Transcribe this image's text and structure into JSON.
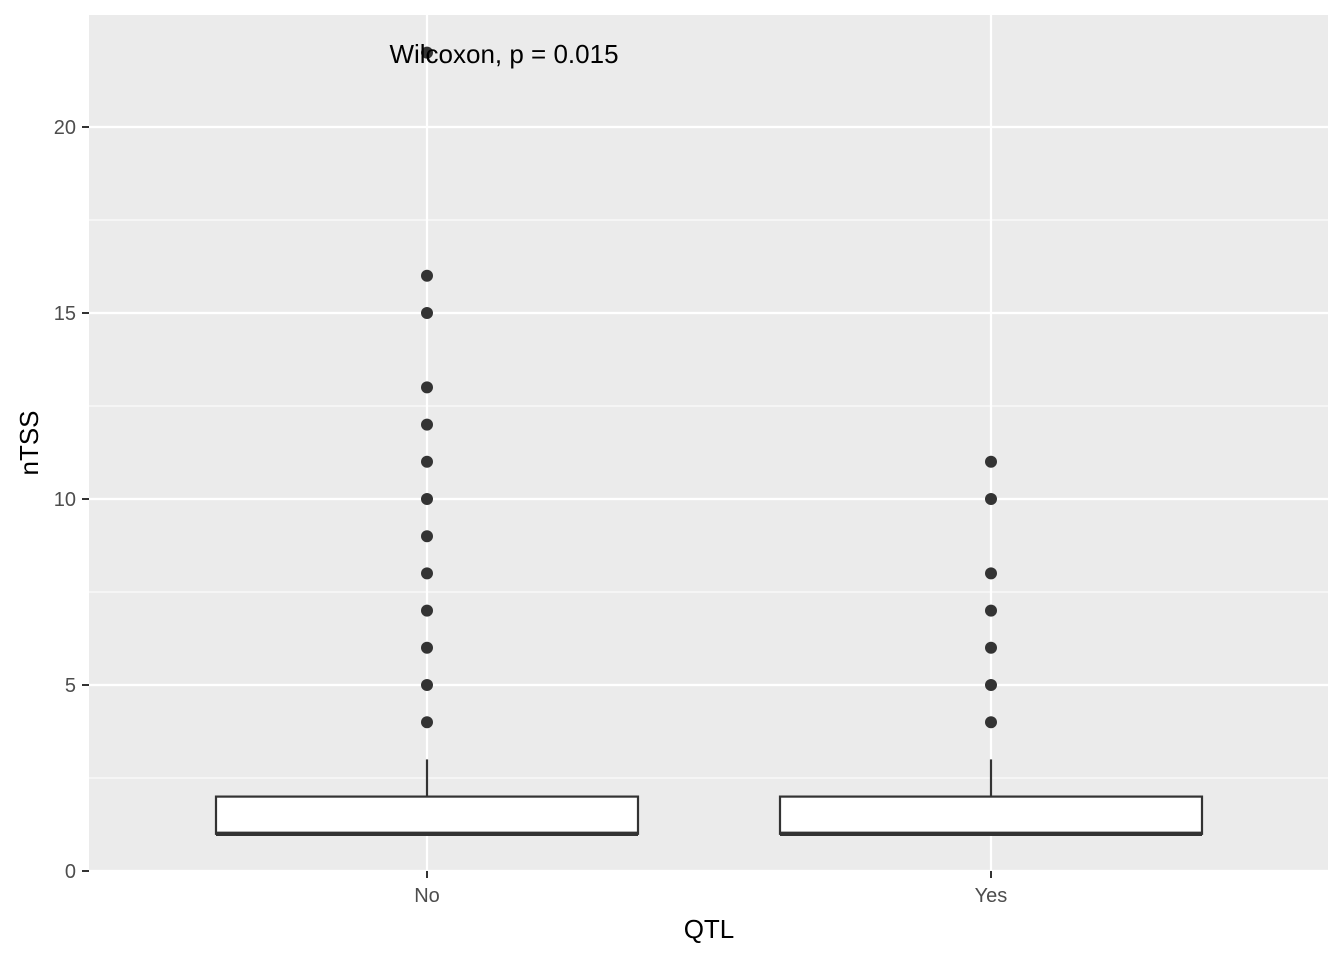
{
  "chart_data": {
    "type": "box",
    "xlabel": "QTL",
    "ylabel": "nTSS",
    "categories": [
      "No",
      "Yes"
    ],
    "ylim": [
      0,
      22.5
    ],
    "yticks": [
      0,
      5,
      10,
      15,
      20
    ],
    "ytick_labels": [
      "0",
      "5",
      "10",
      "15",
      "20"
    ],
    "grid": true,
    "annotation": "Wilcoxon, p = 0.015",
    "boxes": [
      {
        "category": "No",
        "q1": 1,
        "median": 1,
        "q3": 2,
        "whisker_low": 1,
        "whisker_high": 3,
        "outliers": [
          4,
          5,
          6,
          7,
          8,
          9,
          10,
          11,
          12,
          13,
          15,
          16,
          22
        ]
      },
      {
        "category": "Yes",
        "q1": 1,
        "median": 1,
        "q3": 2,
        "whisker_low": 1,
        "whisker_high": 3,
        "outliers": [
          4,
          5,
          6,
          7,
          8,
          10,
          11
        ]
      }
    ]
  },
  "colors": {
    "panel_background": "#ebebeb",
    "grid": "#ffffff",
    "box_fill": "#ffffff",
    "box_stroke": "#333333",
    "outlier": "#333333"
  }
}
